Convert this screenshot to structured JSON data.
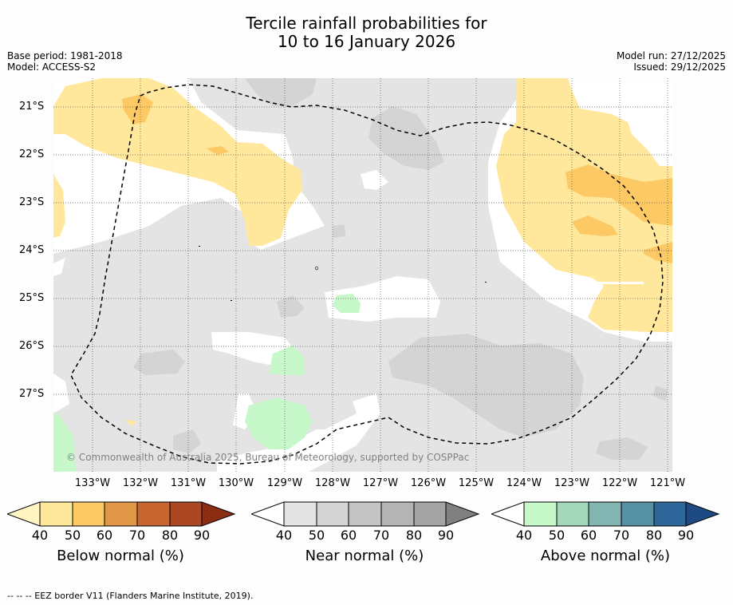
{
  "title": {
    "line1": "Tercile rainfall probabilities for",
    "line2": "10 to 16 January 2026"
  },
  "meta": {
    "base_period": "Base period: 1981-2018",
    "model": "Model: ACCESS-S2",
    "model_run": "Model run: 27/12/2025",
    "issued": "Issued: 29/12/2025"
  },
  "map": {
    "latitudes": [
      "21°S",
      "22°S",
      "23°S",
      "24°S",
      "25°S",
      "26°S",
      "27°S"
    ],
    "longitudes": [
      "133°W",
      "132°W",
      "131°W",
      "130°W",
      "129°W",
      "128°W",
      "127°W",
      "126°W",
      "125°W",
      "124°W",
      "123°W",
      "122°W",
      "121°W"
    ],
    "copyright": "© Commonwealth of Australia 2025, Bureau of Meteorology, supported by COSPPac"
  },
  "colorbars": [
    {
      "label": "Below normal (%)",
      "ticks": [
        "40",
        "50",
        "60",
        "70",
        "80",
        "90"
      ],
      "colors": [
        "#fff6c4",
        "#ffe79b",
        "#fdc964",
        "#e09647",
        "#c96531",
        "#ab4823",
        "#8a2d12"
      ]
    },
    {
      "label": "Near normal (%)",
      "ticks": [
        "40",
        "50",
        "60",
        "70",
        "80",
        "90"
      ],
      "colors": [
        "#ffffff",
        "#e4e4e4",
        "#d4d4d4",
        "#c4c4c4",
        "#b4b4b4",
        "#a4a4a4",
        "#808080"
      ]
    },
    {
      "label": "Above normal (%)",
      "ticks": [
        "40",
        "50",
        "60",
        "70",
        "80",
        "90"
      ],
      "colors": [
        "#ffffff",
        "#c6f8c9",
        "#a4d8bb",
        "#82b5b1",
        "#5690a3",
        "#2f6699",
        "#1d4a83"
      ]
    }
  ],
  "footer": "--  --  -- EEZ border V11 (Flanders Marine Institute, 2019)."
}
